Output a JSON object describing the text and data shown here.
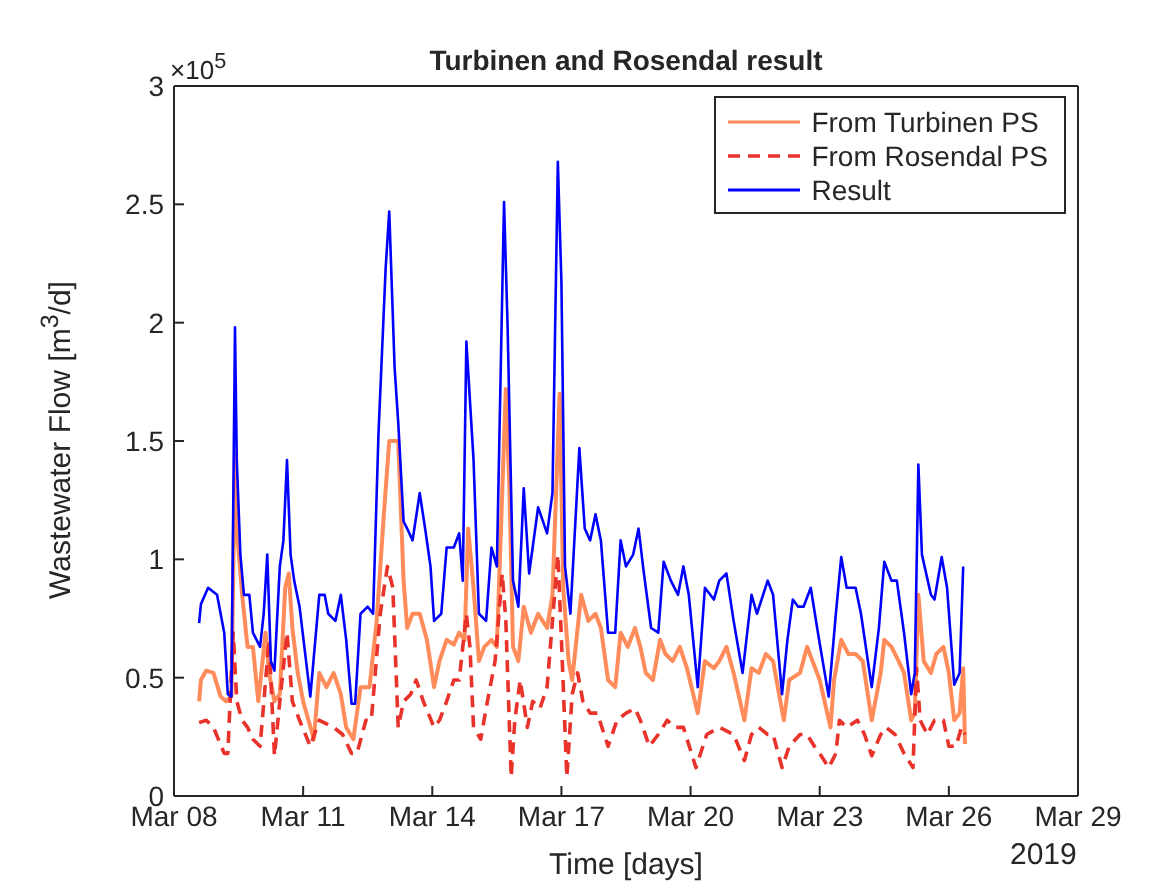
{
  "chart_data": {
    "type": "line",
    "title": "Turbinen and Rosendal result",
    "xlabel": "Time [days]",
    "ylabel": "Wastewater Flow [m$^{3}$/d]",
    "annotations": [
      "×10$^{5}$",
      "2019"
    ],
    "xlim": [
      "2019-03-08",
      "2019-03-29"
    ],
    "xticks": [
      {
        "value": "2019-03-08",
        "label": "Mar 08"
      },
      {
        "value": "2019-03-11",
        "label": "Mar 11"
      },
      {
        "value": "2019-03-14",
        "label": "Mar 14"
      },
      {
        "value": "2019-03-17",
        "label": "Mar 17"
      },
      {
        "value": "2019-03-20",
        "label": "Mar 20"
      },
      {
        "value": "2019-03-23",
        "label": "Mar 23"
      },
      {
        "value": "2019-03-26",
        "label": "Mar 26"
      },
      {
        "value": "2019-03-29",
        "label": "Mar 29"
      }
    ],
    "ylim": [
      0,
      3
    ],
    "yticks": [
      0,
      0.5,
      1,
      1.5,
      2,
      2.5,
      3
    ],
    "legend": "top right",
    "marker": "none",
    "series": [
      {
        "name": "From Turbinen PS",
        "color": "#ff8c5a",
        "line_style": "solid",
        "x": [
          "2019-03-08T14:00",
          "2019-03-08T15:00",
          "2019-03-08T18:00",
          "2019-03-08T22:00",
          "2019-03-09T02:00",
          "2019-03-09T05:00",
          "2019-03-09T08:00",
          "2019-03-09T10:00",
          "2019-03-09T11:00",
          "2019-03-09T14:00",
          "2019-03-09T17:00",
          "2019-03-09T20:00",
          "2019-03-09T23:00",
          "2019-03-10T03:00",
          "2019-03-10T05:00",
          "2019-03-10T08:00",
          "2019-03-10T11:00",
          "2019-03-10T14:00",
          "2019-03-10T16:00",
          "2019-03-10T18:00",
          "2019-03-10T21:00",
          "2019-03-11T00:00",
          "2019-03-11T06:00",
          "2019-03-11T09:00",
          "2019-03-11T13:00",
          "2019-03-11T17:00",
          "2019-03-11T21:00",
          "2019-03-12T00:00",
          "2019-03-12T04:00",
          "2019-03-12T08:00",
          "2019-03-12T13:00",
          "2019-03-12T17:00",
          "2019-03-12T21:00",
          "2019-03-13T00:00",
          "2019-03-13T05:00",
          "2019-03-13T08:00",
          "2019-03-13T10:00",
          "2019-03-13T13:00",
          "2019-03-13T17:00",
          "2019-03-13T21:00",
          "2019-03-14T01:00",
          "2019-03-14T04:00",
          "2019-03-14T08:00",
          "2019-03-14T12:00",
          "2019-03-14T15:00",
          "2019-03-14T18:00",
          "2019-03-14T20:00",
          "2019-03-14T23:00",
          "2019-03-15T02:00",
          "2019-03-15T05:00",
          "2019-03-15T09:00",
          "2019-03-15T12:00",
          "2019-03-15T17:00",
          "2019-03-15T19:00",
          "2019-03-15T21:00",
          "2019-03-16T00:00",
          "2019-03-16T03:00",
          "2019-03-16T07:00",
          "2019-03-16T11:00",
          "2019-03-16T16:00",
          "2019-03-16T19:00",
          "2019-03-16T23:00",
          "2019-03-17T01:00",
          "2019-03-17T04:00",
          "2019-03-17T06:00",
          "2019-03-17T11:00",
          "2019-03-17T15:00",
          "2019-03-17T19:00",
          "2019-03-17T22:00",
          "2019-03-18T02:00",
          "2019-03-18T06:00",
          "2019-03-18T09:00",
          "2019-03-18T13:00",
          "2019-03-18T17:00",
          "2019-03-18T20:00",
          "2019-03-18T23:00",
          "2019-03-19T03:00",
          "2019-03-19T07:00",
          "2019-03-19T10:00",
          "2019-03-19T14:00",
          "2019-03-19T18:00",
          "2019-03-19T22:00",
          "2019-03-20T04:00",
          "2019-03-20T08:00",
          "2019-03-20T13:00",
          "2019-03-20T16:00",
          "2019-03-20T20:00",
          "2019-03-21T00:00",
          "2019-03-21T06:00",
          "2019-03-21T10:00",
          "2019-03-21T14:00",
          "2019-03-21T18:00",
          "2019-03-21T22:00",
          "2019-03-22T04:00",
          "2019-03-22T07:00",
          "2019-03-22T13:00",
          "2019-03-22T17:00",
          "2019-03-22T20:00",
          "2019-03-23T00:00",
          "2019-03-23T06:00",
          "2019-03-23T08:00",
          "2019-03-23T12:00",
          "2019-03-23T16:00",
          "2019-03-23T20:00",
          "2019-03-24T00:00",
          "2019-03-24T05:00",
          "2019-03-24T10:00",
          "2019-03-24T12:00",
          "2019-03-24T16:00",
          "2019-03-24T20:00",
          "2019-03-24T23:00",
          "2019-03-25T03:00",
          "2019-03-25T05:00",
          "2019-03-25T07:00",
          "2019-03-25T10:00",
          "2019-03-25T14:00",
          "2019-03-25T17:00",
          "2019-03-25T21:00",
          "2019-03-26T00:00",
          "2019-03-26T03:00",
          "2019-03-26T06:00",
          "2019-03-26T08:00",
          "2019-03-26T09:00"
        ],
        "values": [
          0.4,
          0.49,
          0.53,
          0.52,
          0.42,
          0.4,
          0.42,
          1.44,
          1.13,
          0.85,
          0.63,
          0.63,
          0.4,
          0.69,
          0.52,
          0.4,
          0.43,
          0.88,
          0.94,
          0.71,
          0.52,
          0.4,
          0.24,
          0.52,
          0.46,
          0.52,
          0.43,
          0.29,
          0.24,
          0.46,
          0.46,
          0.74,
          1.19,
          1.5,
          1.5,
          0.91,
          0.71,
          0.77,
          0.77,
          0.66,
          0.46,
          0.57,
          0.66,
          0.64,
          0.69,
          0.66,
          1.13,
          0.88,
          0.57,
          0.63,
          0.66,
          0.63,
          1.72,
          1.3,
          0.63,
          0.57,
          0.8,
          0.69,
          0.77,
          0.71,
          0.85,
          1.7,
          0.88,
          0.57,
          0.49,
          0.85,
          0.74,
          0.77,
          0.71,
          0.49,
          0.46,
          0.69,
          0.63,
          0.71,
          0.63,
          0.52,
          0.49,
          0.66,
          0.6,
          0.57,
          0.63,
          0.54,
          0.35,
          0.57,
          0.54,
          0.57,
          0.63,
          0.52,
          0.32,
          0.54,
          0.52,
          0.6,
          0.57,
          0.32,
          0.49,
          0.52,
          0.63,
          0.57,
          0.49,
          0.29,
          0.49,
          0.66,
          0.6,
          0.6,
          0.57,
          0.32,
          0.52,
          0.66,
          0.63,
          0.57,
          0.52,
          0.32,
          0.35,
          0.85,
          0.57,
          0.52,
          0.6,
          0.63,
          0.52,
          0.32,
          0.35,
          0.54,
          0.22
        ]
      },
      {
        "name": "From Rosendal PS",
        "color": "#e8322a",
        "line_style": "dashed",
        "x": [
          "2019-03-08T14:00",
          "2019-03-08T18:00",
          "2019-03-08T22:00",
          "2019-03-09T04:00",
          "2019-03-09T06:00",
          "2019-03-09T09:00",
          "2019-03-09T11:00",
          "2019-03-09T14:00",
          "2019-03-09T17:00",
          "2019-03-09T20:00",
          "2019-03-10T00:00",
          "2019-03-10T05:00",
          "2019-03-10T08:00",
          "2019-03-10T11:00",
          "2019-03-10T15:00",
          "2019-03-10T18:00",
          "2019-03-10T22:00",
          "2019-03-11T04:00",
          "2019-03-11T09:00",
          "2019-03-11T17:00",
          "2019-03-11T22:00",
          "2019-03-12T03:00",
          "2019-03-12T06:00",
          "2019-03-12T11:00",
          "2019-03-12T14:00",
          "2019-03-12T19:00",
          "2019-03-12T23:00",
          "2019-03-13T02:00",
          "2019-03-13T05:00",
          "2019-03-13T08:00",
          "2019-03-13T12:00",
          "2019-03-13T15:00",
          "2019-03-13T19:00",
          "2019-03-14T01:00",
          "2019-03-14T04:00",
          "2019-03-14T08:00",
          "2019-03-14T12:00",
          "2019-03-14T15:00",
          "2019-03-14T19:00",
          "2019-03-14T21:00",
          "2019-03-14T23:00",
          "2019-03-15T03:00",
          "2019-03-15T06:00",
          "2019-03-15T11:00",
          "2019-03-15T15:00",
          "2019-03-15T17:00",
          "2019-03-15T20:00",
          "2019-03-15T22:00",
          "2019-03-16T01:00",
          "2019-03-16T05:00",
          "2019-03-16T08:00",
          "2019-03-16T12:00",
          "2019-03-16T16:00",
          "2019-03-16T19:00",
          "2019-03-16T22:00",
          "2019-03-17T00:00",
          "2019-03-17T03:00",
          "2019-03-17T06:00",
          "2019-03-17T09:00",
          "2019-03-17T12:00",
          "2019-03-17T16:00",
          "2019-03-17T20:00",
          "2019-03-18T02:00",
          "2019-03-18T07:00",
          "2019-03-18T12:00",
          "2019-03-18T17:00",
          "2019-03-18T20:00",
          "2019-03-19T01:00",
          "2019-03-19T06:00",
          "2019-03-19T11:00",
          "2019-03-19T15:00",
          "2019-03-19T20:00",
          "2019-03-20T03:00",
          "2019-03-20T09:00",
          "2019-03-20T16:00",
          "2019-03-21T00:00",
          "2019-03-21T06:00",
          "2019-03-21T10:00",
          "2019-03-21T14:00",
          "2019-03-21T19:00",
          "2019-03-21T22:00",
          "2019-03-22T03:00",
          "2019-03-22T07:00",
          "2019-03-22T13:00",
          "2019-03-22T17:00",
          "2019-03-22T21:00",
          "2019-03-23T00:00",
          "2019-03-23T05:00",
          "2019-03-23T09:00",
          "2019-03-23T11:00",
          "2019-03-23T15:00",
          "2019-03-23T21:00",
          "2019-03-24T01:00",
          "2019-03-24T05:00",
          "2019-03-24T10:00",
          "2019-03-24T13:00",
          "2019-03-24T18:00",
          "2019-03-24T23:00",
          "2019-03-25T04:00",
          "2019-03-25T06:00",
          "2019-03-25T08:00",
          "2019-03-25T12:00",
          "2019-03-25T16:00",
          "2019-03-25T21:00",
          "2019-03-26T00:00",
          "2019-03-26T04:00",
          "2019-03-26T07:00",
          "2019-03-26T09:00"
        ],
        "values": [
          0.31,
          0.32,
          0.29,
          0.18,
          0.18,
          0.69,
          0.4,
          0.32,
          0.29,
          0.24,
          0.21,
          0.66,
          0.17,
          0.4,
          0.69,
          0.4,
          0.32,
          0.21,
          0.32,
          0.29,
          0.26,
          0.18,
          0.18,
          0.32,
          0.32,
          0.77,
          0.97,
          0.88,
          0.29,
          0.4,
          0.43,
          0.49,
          0.4,
          0.29,
          0.32,
          0.4,
          0.49,
          0.49,
          0.77,
          0.63,
          0.29,
          0.24,
          0.37,
          0.57,
          0.94,
          0.74,
          0.08,
          0.32,
          0.49,
          0.29,
          0.4,
          0.37,
          0.46,
          0.74,
          1.02,
          0.66,
          0.08,
          0.43,
          0.52,
          0.4,
          0.35,
          0.35,
          0.21,
          0.32,
          0.35,
          0.37,
          0.32,
          0.21,
          0.26,
          0.32,
          0.29,
          0.29,
          0.12,
          0.26,
          0.29,
          0.26,
          0.15,
          0.26,
          0.29,
          0.26,
          0.26,
          0.12,
          0.21,
          0.26,
          0.26,
          0.21,
          0.18,
          0.12,
          0.18,
          0.32,
          0.29,
          0.32,
          0.26,
          0.17,
          0.26,
          0.29,
          0.26,
          0.18,
          0.12,
          0.54,
          0.32,
          0.26,
          0.32,
          0.32,
          0.21,
          0.21,
          0.29,
          0.26
        ]
      },
      {
        "name": "Result",
        "color": "#0000ff",
        "line_style": "solid",
        "x": [
          "2019-03-08T14:00",
          "2019-03-08T15:00",
          "2019-03-08T19:00",
          "2019-03-09T00:00",
          "2019-03-09T04:00",
          "2019-03-09T06:00",
          "2019-03-09T08:00",
          "2019-03-09T10:00",
          "2019-03-09T11:00",
          "2019-03-09T13:00",
          "2019-03-09T15:00",
          "2019-03-09T18:00",
          "2019-03-09T20:00",
          "2019-03-10T00:00",
          "2019-03-10T02:00",
          "2019-03-10T04:00",
          "2019-03-10T06:00",
          "2019-03-10T08:00",
          "2019-03-10T11:00",
          "2019-03-10T13:00",
          "2019-03-10T15:00",
          "2019-03-10T17:00",
          "2019-03-10T19:00",
          "2019-03-10T22:00",
          "2019-03-11T04:00",
          "2019-03-11T09:00",
          "2019-03-11T12:00",
          "2019-03-11T14:00",
          "2019-03-11T18:00",
          "2019-03-11T21:00",
          "2019-03-12T00:00",
          "2019-03-12T03:00",
          "2019-03-12T05:00",
          "2019-03-12T08:00",
          "2019-03-12T12:00",
          "2019-03-12T15:00",
          "2019-03-12T18:00",
          "2019-03-12T22:00",
          "2019-03-13T00:00",
          "2019-03-13T03:00",
          "2019-03-13T05:00",
          "2019-03-13T08:00",
          "2019-03-13T10:00",
          "2019-03-13T13:00",
          "2019-03-13T17:00",
          "2019-03-13T20:00",
          "2019-03-13T23:00",
          "2019-03-14T01:00",
          "2019-03-14T05:00",
          "2019-03-14T08:00",
          "2019-03-14T12:00",
          "2019-03-14T15:00",
          "2019-03-14T17:00",
          "2019-03-14T19:00",
          "2019-03-14T23:00",
          "2019-03-15T02:00",
          "2019-03-15T06:00",
          "2019-03-15T09:00",
          "2019-03-15T12:00",
          "2019-03-15T16:00",
          "2019-03-15T18:00",
          "2019-03-15T21:00",
          "2019-03-16T00:00",
          "2019-03-16T03:00",
          "2019-03-16T06:00",
          "2019-03-16T11:00",
          "2019-03-16T16:00",
          "2019-03-16T19:00",
          "2019-03-16T22:00",
          "2019-03-17T00:00",
          "2019-03-17T02:00",
          "2019-03-17T05:00",
          "2019-03-17T10:00",
          "2019-03-17T13:00",
          "2019-03-17T16:00",
          "2019-03-17T19:00",
          "2019-03-17T22:00",
          "2019-03-18T02:00",
          "2019-03-18T06:00",
          "2019-03-18T09:00",
          "2019-03-18T12:00",
          "2019-03-18T16:00",
          "2019-03-18T19:00",
          "2019-03-18T22:00",
          "2019-03-19T02:00",
          "2019-03-19T06:00",
          "2019-03-19T09:00",
          "2019-03-19T13:00",
          "2019-03-19T17:00",
          "2019-03-19T20:00",
          "2019-03-19T23:00",
          "2019-03-20T04:00",
          "2019-03-20T08:00",
          "2019-03-20T13:00",
          "2019-03-20T16:00",
          "2019-03-20T20:00",
          "2019-03-21T00:00",
          "2019-03-21T05:00",
          "2019-03-21T10:00",
          "2019-03-21T13:00",
          "2019-03-21T19:00",
          "2019-03-21T22:00",
          "2019-03-22T03:00",
          "2019-03-22T06:00",
          "2019-03-22T09:00",
          "2019-03-22T12:00",
          "2019-03-22T15:00",
          "2019-03-22T19:00",
          "2019-03-22T23:00",
          "2019-03-23T05:00",
          "2019-03-23T09:00",
          "2019-03-23T12:00",
          "2019-03-23T15:00",
          "2019-03-23T20:00",
          "2019-03-23T23:00",
          "2019-03-24T05:00",
          "2019-03-24T09:00",
          "2019-03-24T12:00",
          "2019-03-24T16:00",
          "2019-03-24T19:00",
          "2019-03-24T23:00",
          "2019-03-25T03:00",
          "2019-03-25T05:00",
          "2019-03-25T07:00",
          "2019-03-25T09:00",
          "2019-03-25T14:00",
          "2019-03-25T16:00",
          "2019-03-25T20:00",
          "2019-03-25T23:00",
          "2019-03-26T03:00",
          "2019-03-26T06:00",
          "2019-03-26T08:00"
        ],
        "values": [
          0.73,
          0.81,
          0.88,
          0.85,
          0.69,
          0.43,
          0.42,
          1.98,
          1.42,
          1.02,
          0.85,
          0.85,
          0.69,
          0.63,
          0.77,
          1.02,
          0.57,
          0.53,
          0.97,
          1.08,
          1.42,
          1.02,
          0.91,
          0.8,
          0.42,
          0.85,
          0.85,
          0.77,
          0.74,
          0.85,
          0.66,
          0.39,
          0.39,
          0.77,
          0.8,
          0.77,
          1.53,
          2.23,
          2.47,
          1.81,
          1.58,
          1.16,
          1.13,
          1.08,
          1.28,
          1.13,
          0.97,
          0.74,
          0.77,
          1.05,
          1.05,
          1.11,
          0.91,
          1.92,
          1.42,
          0.77,
          0.74,
          1.05,
          0.97,
          2.51,
          1.98,
          0.91,
          0.8,
          1.3,
          0.94,
          1.22,
          1.11,
          1.28,
          2.68,
          2.17,
          0.97,
          0.77,
          1.47,
          1.13,
          1.08,
          1.19,
          1.08,
          0.69,
          0.69,
          1.08,
          0.97,
          1.02,
          1.13,
          0.94,
          0.71,
          0.69,
          0.99,
          0.91,
          0.85,
          0.97,
          0.85,
          0.46,
          0.88,
          0.83,
          0.91,
          0.94,
          0.74,
          0.52,
          0.85,
          0.77,
          0.91,
          0.85,
          0.43,
          0.66,
          0.83,
          0.8,
          0.8,
          0.88,
          0.69,
          0.42,
          0.77,
          1.01,
          0.88,
          0.88,
          0.77,
          0.46,
          0.71,
          0.99,
          0.91,
          0.91,
          0.69,
          0.43,
          0.52,
          1.4,
          1.02,
          0.85,
          0.83,
          1.01,
          0.88,
          0.47,
          0.52,
          0.97
        ]
      }
    ]
  }
}
